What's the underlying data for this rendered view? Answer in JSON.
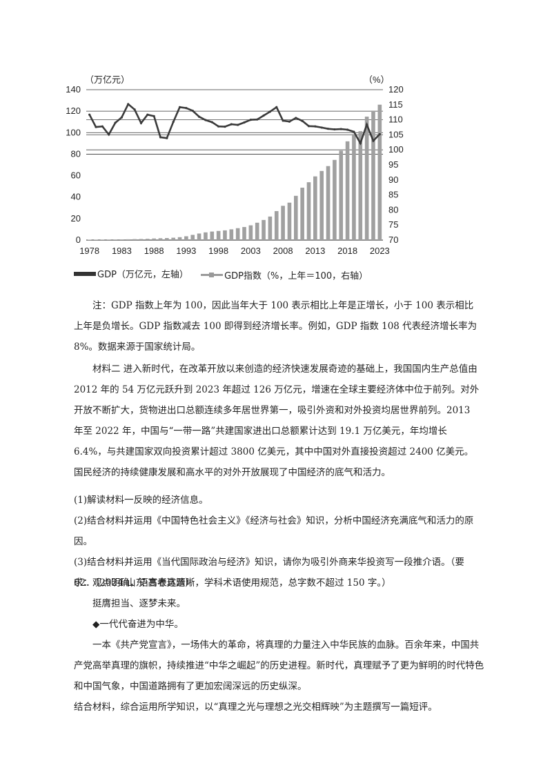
{
  "chart_data": {
    "type": "bar+line",
    "left_axis": {
      "label": "（万亿元）",
      "ticks": [
        "140",
        "120",
        "100",
        "80",
        "60",
        "40",
        "20",
        "0"
      ],
      "ylim": [
        0,
        140
      ]
    },
    "right_axis": {
      "label": "（%）",
      "ticks": [
        "120",
        "115",
        "110",
        "105",
        "100",
        "95",
        "90",
        "85",
        "80",
        "75",
        "70"
      ],
      "ylim": [
        70,
        120
      ]
    },
    "x_ticks": [
      "1978",
      "1983",
      "1988",
      "1993",
      "1998",
      "2003",
      "2008",
      "2013",
      "2018",
      "2023"
    ],
    "years": [
      1978,
      1979,
      1980,
      1981,
      1982,
      1983,
      1984,
      1985,
      1986,
      1987,
      1988,
      1989,
      1990,
      1991,
      1992,
      1993,
      1994,
      1995,
      1996,
      1997,
      1998,
      1999,
      2000,
      2001,
      2002,
      2003,
      2004,
      2005,
      2006,
      2007,
      2008,
      2009,
      2010,
      2011,
      2012,
      2013,
      2014,
      2015,
      2016,
      2017,
      2018,
      2019,
      2020,
      2021,
      2022,
      2023
    ],
    "gdp": [
      0.37,
      0.41,
      0.46,
      0.49,
      0.54,
      0.6,
      0.73,
      0.91,
      1.04,
      1.22,
      1.51,
      1.72,
      1.89,
      2.2,
      2.72,
      3.57,
      4.86,
      6.13,
      7.18,
      7.97,
      8.52,
      9.06,
      10.03,
      11.09,
      12.17,
      13.74,
      16.18,
      18.73,
      21.94,
      27.01,
      31.92,
      34.85,
      41.21,
      48.79,
      53.86,
      59.3,
      64.36,
      68.89,
      74.64,
      83.2,
      91.93,
      98.65,
      101.36,
      114.92,
      120.47,
      126.06
    ],
    "gdp_index": [
      111.7,
      107.6,
      107.8,
      105.1,
      109.0,
      110.8,
      115.2,
      113.4,
      108.9,
      111.7,
      111.2,
      104.2,
      103.9,
      109.3,
      114.2,
      113.9,
      113.0,
      111.0,
      109.9,
      109.2,
      107.8,
      107.7,
      108.5,
      108.3,
      109.1,
      110.0,
      110.1,
      111.4,
      112.7,
      114.2,
      109.7,
      109.4,
      110.6,
      109.6,
      107.9,
      107.8,
      107.4,
      107.0,
      106.8,
      106.9,
      106.7,
      106.0,
      102.2,
      108.4,
      103.0,
      105.2
    ],
    "legend": [
      "GDP（万亿元，左轴）",
      "GDP指数（%，上年＝100，右轴）"
    ]
  },
  "note": "注：GDP 指数上年为 100，因此当年大于 100 表示相比上年是正增长，小于 100 表示相比上年是负增长。GDP 指数减去 100 即得到经济增长率。例如，GDP 指数 108 代表经济增长率为 8%。数据来源于国家统计局。",
  "material2": "材料二  进入新时代，在改革开放以来创造的经济快速发展奇迹的基础上，我国国内生产总值由 2012 年的 54 万亿元跃升到 2023 年超过 126 万亿元，增速在全球主要经济体中位于前列。对外开放不断扩大，货物进出口总额连续多年居世界第一，吸引外资和对外投资均居世界前列。2013 年至 2022 年，中国与“一带一路”共建国家进出口总额累计达到 19.1 万亿美元，年均增长 6.4%，与共建国家双向投资累计超过 3800 亿美元，其中中国对外直接投资超过 2400 亿美元。国民经济的持续健康发展和高水平的对外开放展现了中国经济的底气和活力。",
  "questions": [
    "(1)解读材料一反映的经济信息。",
    "(2)结合材料并运用《中国特色社会主义》《经济与社会》知识，分析中国经济充满底气和活力的原因。",
    "(3)结合材料并运用《当代国际政治与经济》知识，请你为吸引外商来华投资写一段推介语。（要求：观点明确，语言表达清晰，学科术语使用规范，总字数不超过 150 字。）"
  ],
  "q62": {
    "header": "62．（2024·山东·高考真题）",
    "line1": "挺膺担当、逐梦未来。",
    "line2": "◆一代代奋进为中华。",
    "para": "一本《共产党宣言》，一场伟大的革命，将真理的力量注入中华民族的血脉。百余年来，中国共产党高举真理的旗帜，持续推进“中华之崛起”的历史进程。新时代，真理赋予了更为鲜明的时代特色和中国气象，中国道路拥有了更加宏阔深远的历史纵深。",
    "task": "结合材料，综合运用所学知识，以“真理之光与理想之光交相辉映”为主题撰写一篇短评。"
  }
}
